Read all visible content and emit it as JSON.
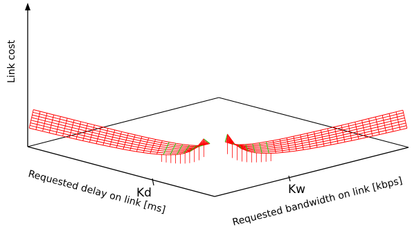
{
  "chart_data": {
    "type": "surface-3d",
    "zlabel": "Link cost",
    "xlabel": "Requested delay on link [ms]",
    "ylabel": "Requested bandwidth on link [kbps]",
    "x_tick_labels": [
      "Kd"
    ],
    "y_tick_labels": [
      "Kw"
    ],
    "grid": false,
    "legend": "none",
    "colors": {
      "mesh_above_threshold": "#ff0000",
      "mesh_below_threshold": "#00e600",
      "axes": "#000000"
    },
    "surfaces": [
      {
        "name": "",
        "x_axis": "delay",
        "shape": "cost rises steeply as requested value approaches the threshold",
        "peak_relative": 1.0,
        "baseline_relative": 0.15
      },
      {
        "name": "",
        "x_axis": "bandwidth",
        "shape": "cost rises steeply as requested value approaches the threshold",
        "peak_relative": 1.12,
        "baseline_relative": 0.15
      }
    ]
  }
}
